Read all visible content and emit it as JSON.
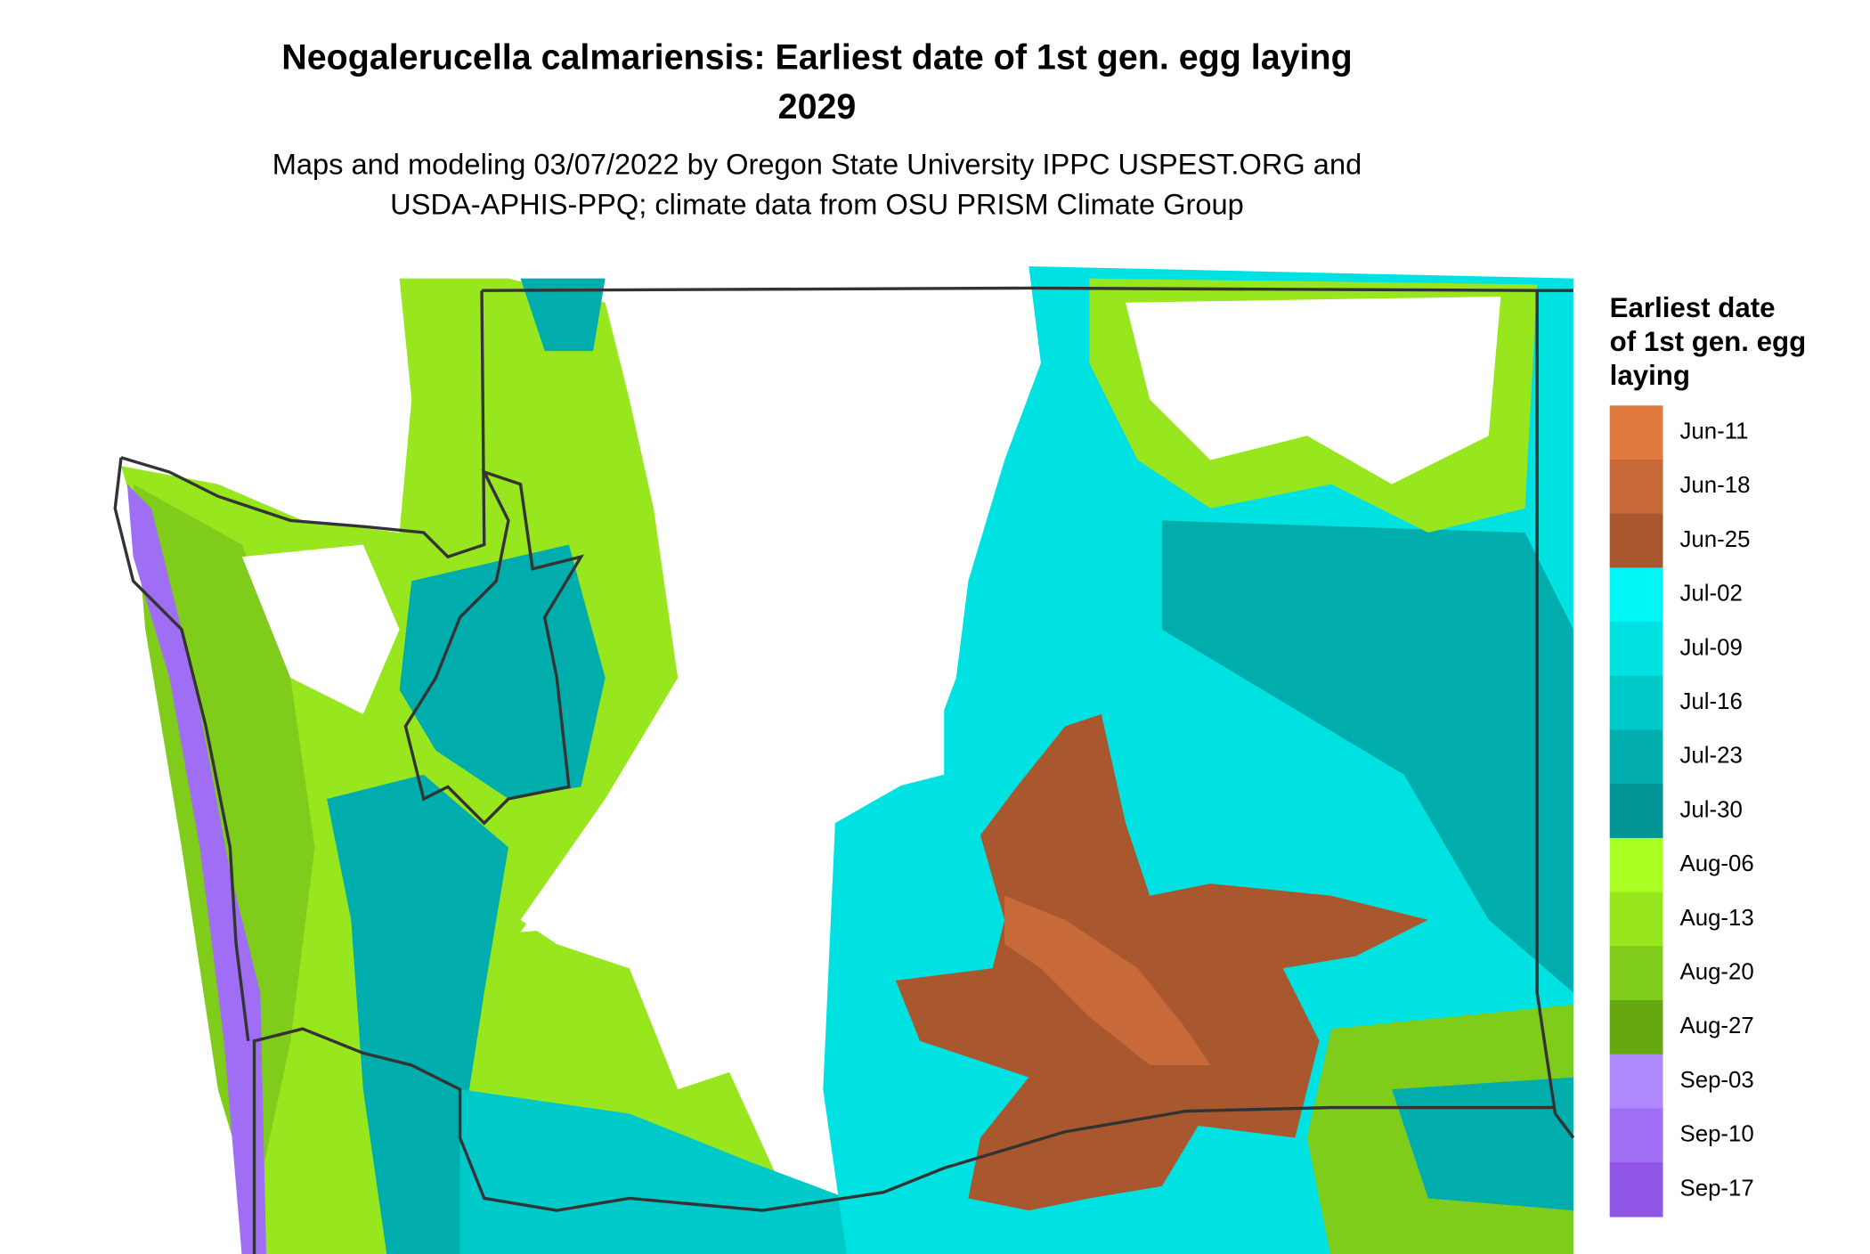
{
  "header": {
    "title_lines": [
      "Neogalerucella calmariensis: Earliest date of 1st gen. egg laying",
      "2029"
    ],
    "subtitle_lines": [
      "Maps and modeling 03/07/2022 by Oregon State University IPPC USPEST.ORG and",
      "USDA-APHIS-PPQ; climate data from OSU PRISM Climate Group"
    ]
  },
  "legend": {
    "title_lines": [
      "Earliest date",
      "of 1st gen. egg",
      "laying"
    ],
    "items": [
      {
        "label": "Jun-11",
        "color": "#e07a3f"
      },
      {
        "label": "Jun-18",
        "color": "#c8693a"
      },
      {
        "label": "Jun-25",
        "color": "#a9572f"
      },
      {
        "label": "Jul-02",
        "color": "#00f5f5"
      },
      {
        "label": "Jul-09",
        "color": "#00e2e2"
      },
      {
        "label": "Jul-16",
        "color": "#00c9c9"
      },
      {
        "label": "Jul-23",
        "color": "#00adad"
      },
      {
        "label": "Jul-30",
        "color": "#009494"
      },
      {
        "label": "Aug-06",
        "color": "#aaff22"
      },
      {
        "label": "Aug-13",
        "color": "#98e61e"
      },
      {
        "label": "Aug-20",
        "color": "#80cc1a"
      },
      {
        "label": "Aug-27",
        "color": "#66a810"
      },
      {
        "label": "Sep-03",
        "color": "#b089ff"
      },
      {
        "label": "Sep-10",
        "color": "#9f6ef5"
      },
      {
        "label": "Sep-17",
        "color": "#8f56e6"
      }
    ]
  }
}
